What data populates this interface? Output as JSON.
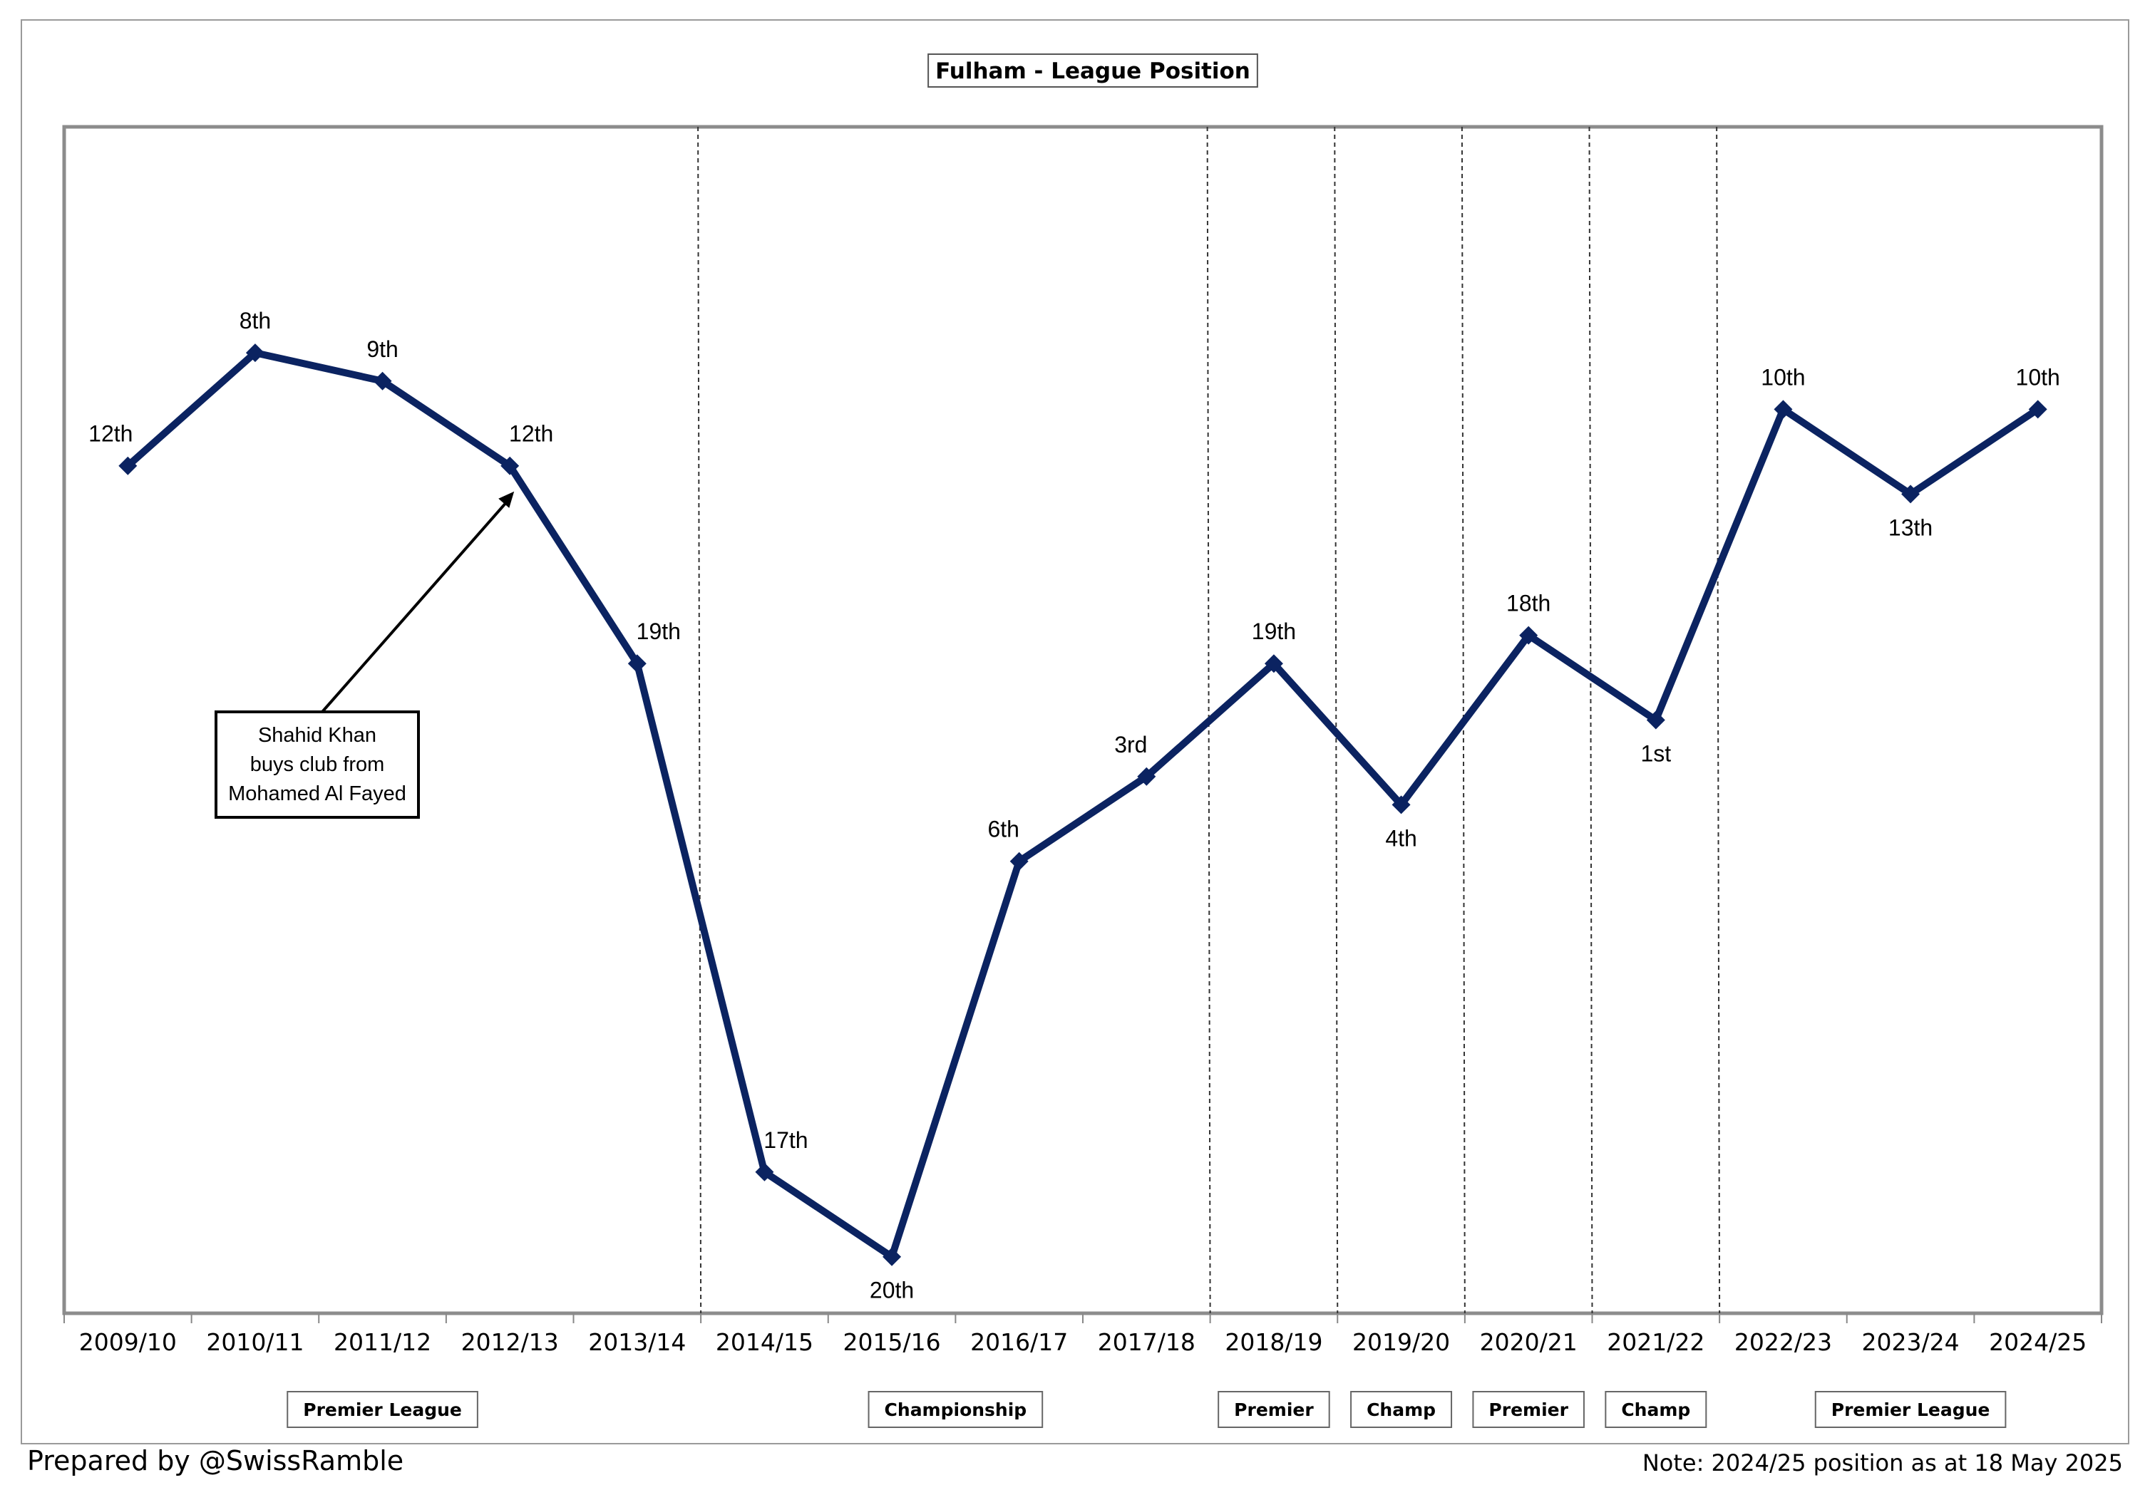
{
  "chart_data": {
    "type": "line",
    "title": "Fulham - League Position",
    "categories": [
      "2009/10",
      "2010/11",
      "2011/12",
      "2012/13",
      "2013/14",
      "2014/15",
      "2015/16",
      "2016/17",
      "2017/18",
      "2018/19",
      "2019/20",
      "2020/21",
      "2021/22",
      "2022/23",
      "2023/24",
      "2024/25"
    ],
    "series": [
      {
        "values": [
          12,
          8,
          9,
          12,
          19,
          17,
          20,
          6,
          3,
          19,
          4,
          18,
          1,
          10,
          13,
          10
        ],
        "labels": [
          "12th",
          "8th",
          "9th",
          "12th",
          "19th",
          "17th",
          "20th",
          "6th",
          "3rd",
          "19th",
          "4th",
          "18th",
          "1st",
          "10th",
          "13th",
          "10th"
        ],
        "divisions": [
          "Premier League",
          "Premier League",
          "Premier League",
          "Premier League",
          "Premier League",
          "Championship",
          "Championship",
          "Championship",
          "Championship",
          "Premier League",
          "Championship",
          "Premier League",
          "Championship",
          "Premier League",
          "Premier League",
          "Premier League"
        ]
      }
    ],
    "leagues": [
      {
        "label": "Premier League",
        "from": 0,
        "to": 4
      },
      {
        "label": "Championship",
        "from": 5,
        "to": 8
      },
      {
        "label": "Premier",
        "from": 9,
        "to": 9
      },
      {
        "label": "Champ",
        "from": 10,
        "to": 10
      },
      {
        "label": "Premier",
        "from": 11,
        "to": 11
      },
      {
        "label": "Champ",
        "from": 12,
        "to": 12
      },
      {
        "label": "Premier League",
        "from": 13,
        "to": 15
      }
    ],
    "annotation": {
      "lines": [
        "Shahid Khan",
        "buys club from",
        "Mohamed Al Fayed"
      ],
      "points_to": "2012/13"
    },
    "grid": false,
    "line_color": "#0b2361"
  },
  "footer": {
    "left": "Prepared by @SwissRamble",
    "right": "Note: 2024/25 position as at 18 May 2025"
  }
}
